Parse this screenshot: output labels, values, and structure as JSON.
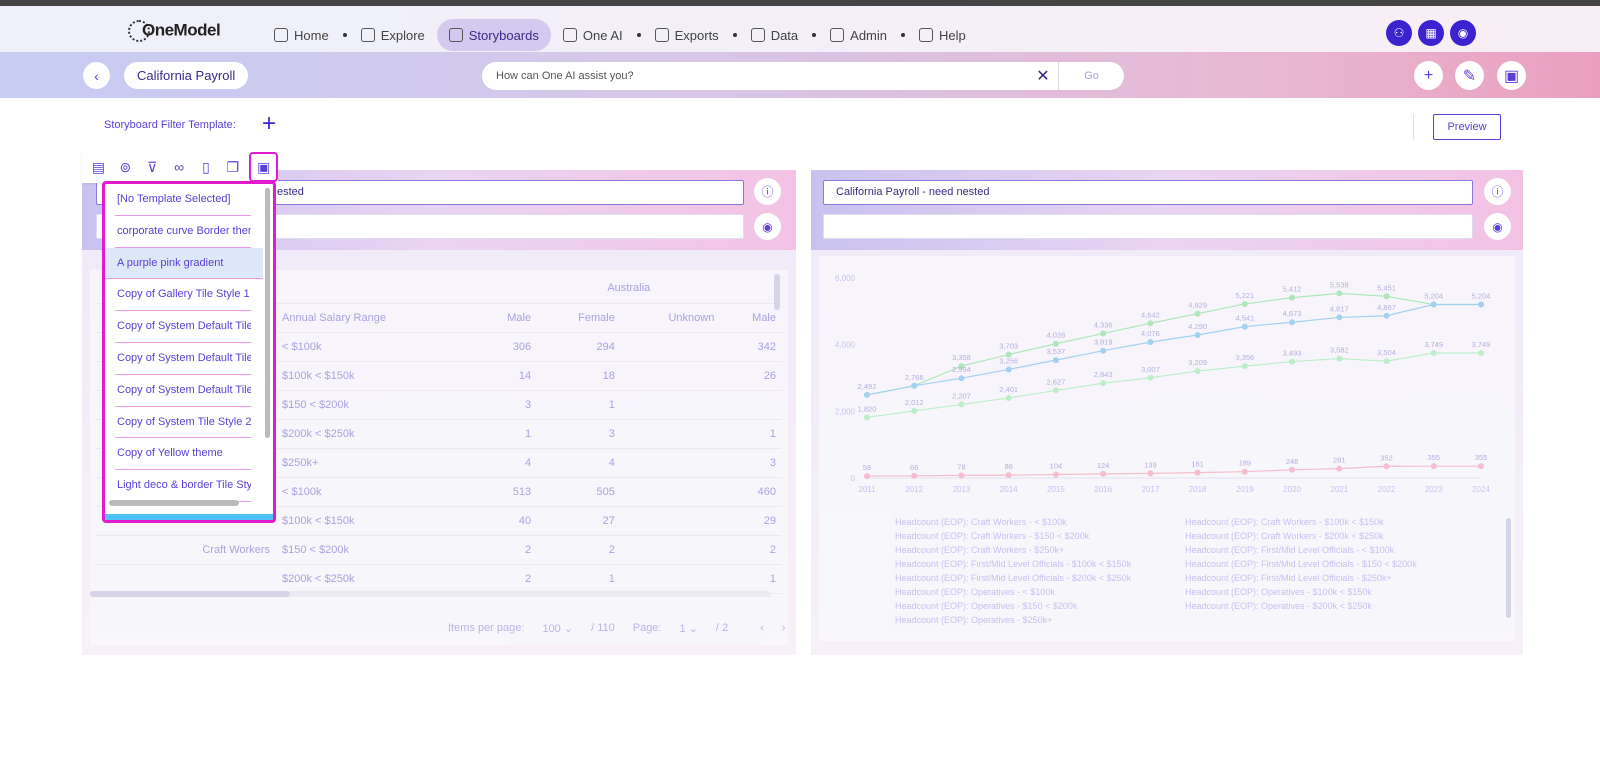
{
  "nav": {
    "brand": "OneModel",
    "items": [
      {
        "label": "Home",
        "icon": "home-icon"
      },
      {
        "label": "Explore",
        "icon": "explore-icon"
      },
      {
        "label": "Storyboards",
        "icon": "storyboard-icon",
        "active": true
      },
      {
        "label": "One AI",
        "icon": "bulb-icon"
      },
      {
        "label": "Exports",
        "icon": "export-icon"
      },
      {
        "label": "Data",
        "icon": "data-icon"
      },
      {
        "label": "Admin",
        "icon": "gear-icon"
      },
      {
        "label": "Help",
        "icon": "help-icon"
      }
    ]
  },
  "subbar": {
    "title": "California Payroll",
    "ask_placeholder": "How can One AI assist you?",
    "go_label": "Go"
  },
  "filter": {
    "label": "Storyboard Filter Template:",
    "preview_label": "Preview"
  },
  "left_tile": {
    "title_fragment": "ested",
    "header_top": "Australia",
    "columns": [
      "Annual Salary Range",
      "Male",
      "Female",
      "Unknown",
      "Male"
    ],
    "rows": [
      {
        "group": "",
        "range": "< $100k",
        "male": "306",
        "female": "294",
        "unknown": "",
        "male2": "342"
      },
      {
        "group": "",
        "range": "$100k < $150k",
        "male": "14",
        "female": "18",
        "unknown": "",
        "male2": "26"
      },
      {
        "group": "",
        "range": "$150 < $200k",
        "male": "3",
        "female": "1",
        "unknown": "",
        "male2": ""
      },
      {
        "group": "",
        "range": "$200k < $250k",
        "male": "1",
        "female": "3",
        "unknown": "",
        "male2": "1"
      },
      {
        "group": "",
        "range": "$250k+",
        "male": "4",
        "female": "4",
        "unknown": "",
        "male2": "3"
      },
      {
        "group": "",
        "range": "< $100k",
        "male": "513",
        "female": "505",
        "unknown": "",
        "male2": "460"
      },
      {
        "group": "",
        "range": "$100k < $150k",
        "male": "40",
        "female": "27",
        "unknown": "",
        "male2": "29"
      },
      {
        "group": "Craft Workers",
        "range": "$150 < $200k",
        "male": "2",
        "female": "2",
        "unknown": "",
        "male2": "2"
      },
      {
        "group": "",
        "range": "$200k < $250k",
        "male": "2",
        "female": "1",
        "unknown": "",
        "male2": "1"
      }
    ],
    "pager": {
      "items_label": "Items per page:",
      "items_value": "100",
      "items_total": "/ 110",
      "page_label": "Page:",
      "page_value": "1",
      "page_total": "/ 2"
    }
  },
  "right_tile": {
    "title": "California Payroll - need nested"
  },
  "template_menu": {
    "items": [
      "[No Template Selected]",
      "corporate curve Border theme",
      "A purple pink gradient",
      "Copy of Gallery Tile Style 1",
      "Copy of System Default Tile Style",
      "Copy of System Default Tile Style",
      "Copy of System Default Tile Style",
      "Copy of System Tile Style 2",
      "Copy of Yellow theme",
      "Light deco & border Tile Style"
    ],
    "highlighted_index": 2
  },
  "chart_data": {
    "type": "line",
    "x": [
      2011,
      2012,
      2013,
      2014,
      2015,
      2016,
      2017,
      2018,
      2019,
      2020,
      2021,
      2022,
      2023,
      2024
    ],
    "ylim": [
      0,
      6000
    ],
    "yticks": [
      "0",
      "2,000",
      "4,000",
      "6,000"
    ],
    "series": [
      {
        "name": "Headcount (EOP): Operatives - < $100k",
        "color": "#a8e6b5",
        "values": [
          2492,
          2766,
          3358,
          3703,
          4028,
          4336,
          4642,
          4929,
          5221,
          5412,
          5538,
          5451,
          5204,
          5204
        ],
        "labels": [
          "2,492",
          "2,766",
          "3,358",
          "3,703",
          "4,028",
          "4,336",
          "4,642",
          "4,929",
          "5,221",
          "5,412",
          "5,538",
          "5,451",
          "5,204",
          "5,204"
        ]
      },
      {
        "name": "Headcount (EOP): Craft Workers - < $100k",
        "color": "#9ccff0",
        "values": [
          2492,
          2766,
          2994,
          3256,
          3537,
          3819,
          4076,
          4290,
          4541,
          4673,
          4817,
          4867,
          5204,
          5204
        ],
        "labels": [
          "",
          "",
          "2,994",
          "3,256",
          "3,537",
          "3,819",
          "4,076",
          "4,290",
          "4,541",
          "4,673",
          "4,817",
          "4,867",
          "",
          ""
        ]
      },
      {
        "name": "Headcount (EOP): First/Mid Level Officials - < $100k",
        "color": "#b8efc4",
        "values": [
          1820,
          2012,
          2207,
          2401,
          2627,
          2843,
          3007,
          3209,
          3356,
          3493,
          3582,
          3504,
          3749,
          3749
        ],
        "labels": [
          "1,820",
          "2,012",
          "2,207",
          "2,401",
          "2,627",
          "2,843",
          "3,007",
          "3,209",
          "3,356",
          "3,493",
          "3,582",
          "3,504",
          "3,749",
          "3,749"
        ]
      },
      {
        "name": "Headcount (EOP): Craft Workers - $100k < $150k",
        "color": "#f4b8cc",
        "values": [
          58,
          66,
          78,
          86,
          104,
          124,
          139,
          161,
          189,
          246,
          281,
          352,
          355,
          355
        ],
        "labels": [
          "58",
          "66",
          "78",
          "86",
          "104",
          "124",
          "139",
          "161",
          "189",
          "246",
          "281",
          "352",
          "355",
          "355"
        ]
      }
    ],
    "legend": [
      "Headcount (EOP): Craft Workers - < $100k",
      "Headcount (EOP): Craft Workers - $100k < $150k",
      "Headcount (EOP): Craft Workers - $150 < $200k",
      "Headcount (EOP): Craft Workers - $200k < $250k",
      "Headcount (EOP): Craft Workers - $250k+",
      "Headcount (EOP): First/Mid Level Officials - < $100k",
      "Headcount (EOP): First/Mid Level Officials - $100k < $150k",
      "Headcount (EOP): First/Mid Level Officials - $150 < $200k",
      "Headcount (EOP): First/Mid Level Officials - $200k < $250k",
      "Headcount (EOP): First/Mid Level Officials - $250k+",
      "Headcount (EOP): Operatives - < $100k",
      "Headcount (EOP): Operatives - $100k < $150k",
      "Headcount (EOP): Operatives - $150 < $200k",
      "Headcount (EOP): Operatives - $200k < $250k",
      "Headcount (EOP): Operatives - $250k+"
    ]
  }
}
